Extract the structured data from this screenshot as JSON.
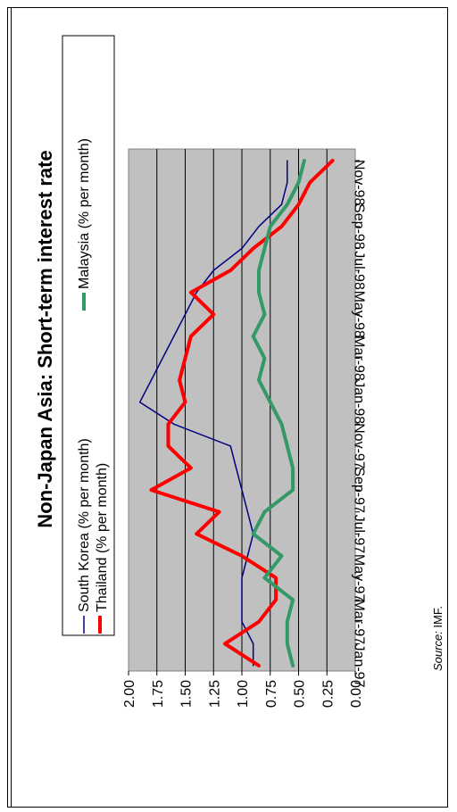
{
  "chart_data": {
    "type": "line",
    "title": "Non-Japan Asia: Short-term interest rate",
    "source_label": "Source:",
    "source_text": " IMF.",
    "x": [
      "Jan-97",
      "Feb-97",
      "Mar-97",
      "Apr-97",
      "May-97",
      "Jun-97",
      "Jul-97",
      "Aug-97",
      "Sep-97",
      "Oct-97",
      "Nov-97",
      "Dec-97",
      "Jan-98",
      "Feb-98",
      "Mar-98",
      "Apr-98",
      "May-98",
      "Jun-98",
      "Jul-98",
      "Aug-98",
      "Sep-98",
      "Oct-98",
      "Nov-98",
      "Dec-98"
    ],
    "x_tick_labels": [
      "Jan-97",
      "Mar-97",
      "May-97",
      "Jul-97",
      "Sep-97",
      "Nov-97",
      "Jan-98",
      "Mar-98",
      "May-98",
      "Jul-98",
      "Sep-98",
      "Nov-98"
    ],
    "ylim": [
      0,
      2
    ],
    "y_ticks": [
      "0.00",
      "0.25",
      "0.50",
      "0.75",
      "1.00",
      "1.25",
      "1.50",
      "1.75",
      "2.00"
    ],
    "grid": true,
    "legend_position": "top",
    "series": [
      {
        "name": "South Korea (% per month)",
        "color": "#000080",
        "values": [
          0.9,
          0.9,
          1.0,
          1.0,
          1.0,
          0.95,
          0.9,
          0.95,
          1.0,
          1.05,
          1.1,
          1.6,
          1.9,
          1.8,
          1.7,
          1.6,
          1.5,
          1.4,
          1.25,
          1.0,
          0.85,
          0.65,
          0.6,
          0.6
        ]
      },
      {
        "name": "Thailand (% per month)",
        "color": "#ff0000",
        "values": [
          0.85,
          1.15,
          0.85,
          0.7,
          0.7,
          1.0,
          1.4,
          1.2,
          1.8,
          1.45,
          1.65,
          1.65,
          1.5,
          1.55,
          1.5,
          1.45,
          1.25,
          1.45,
          1.1,
          0.9,
          0.65,
          0.5,
          0.4,
          0.2
        ]
      },
      {
        "name": "Malaysia (% per month)",
        "color": "#339966",
        "values": [
          0.55,
          0.6,
          0.6,
          0.55,
          0.8,
          0.65,
          0.9,
          0.8,
          0.55,
          0.55,
          0.6,
          0.65,
          0.75,
          0.85,
          0.8,
          0.9,
          0.8,
          0.85,
          0.85,
          0.8,
          0.75,
          0.6,
          0.5,
          0.45
        ]
      }
    ]
  }
}
